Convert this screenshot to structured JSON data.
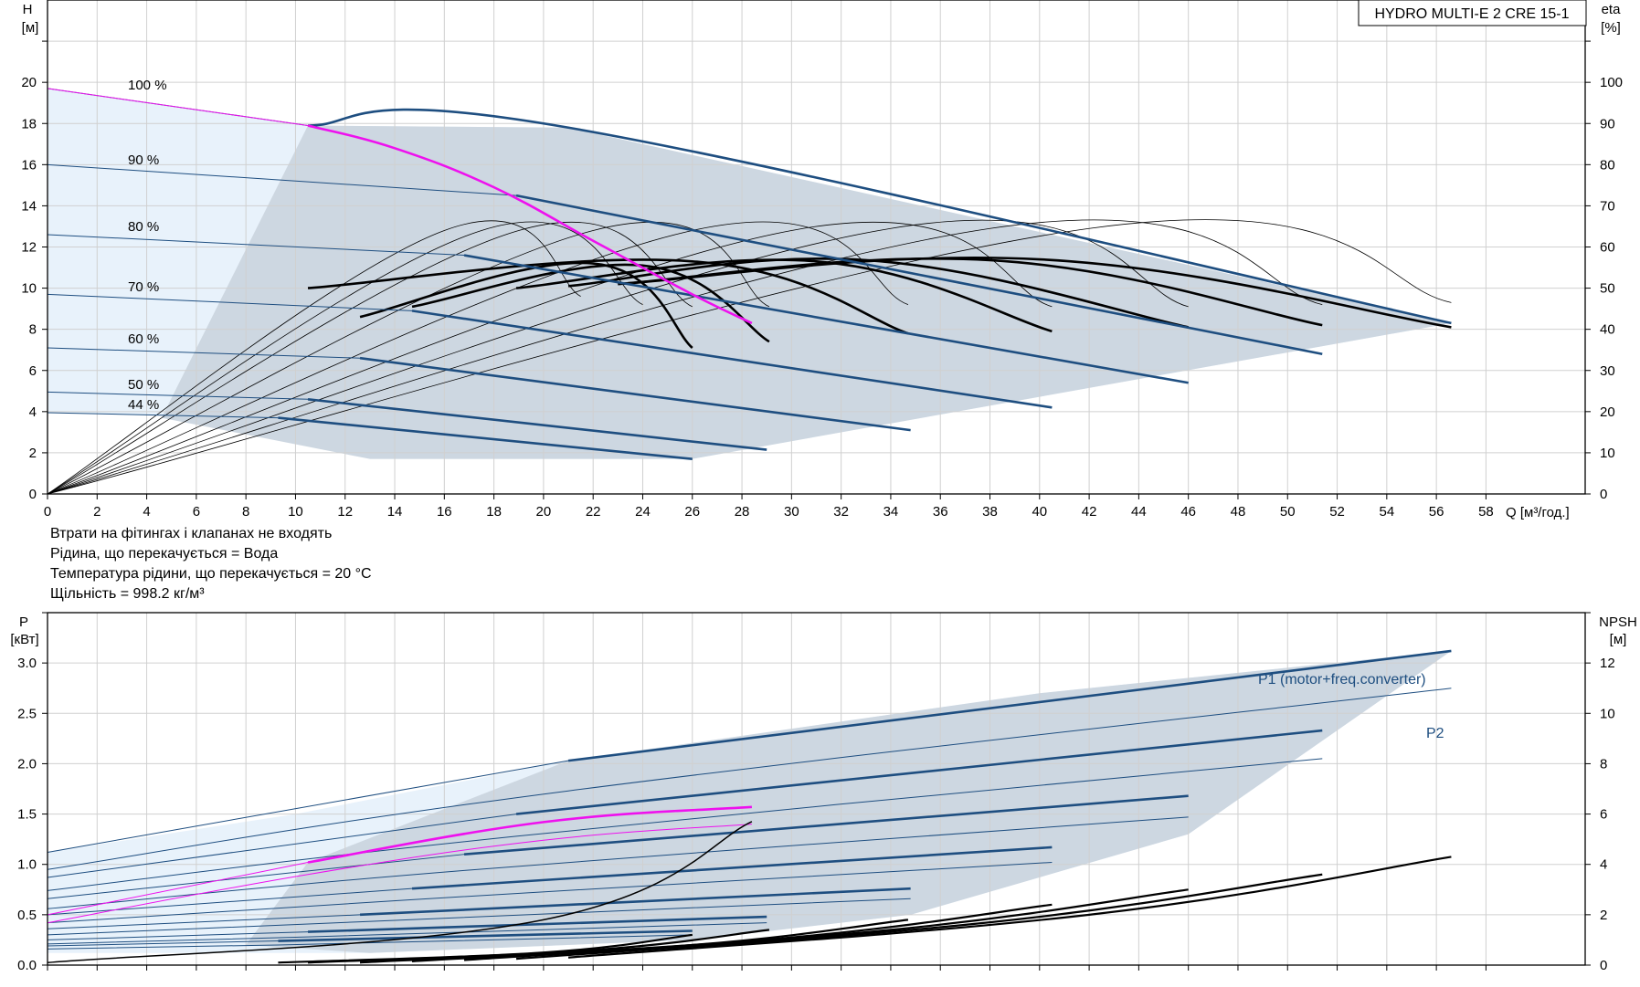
{
  "notes": [
    "Втрати на фітингах і клапанах не входять",
    "Рідина, що перекачується = Вода",
    "Температура рідини, що перекачується = 20 °C",
    "Щільність = 998.2 кг/м³"
  ],
  "colors": {
    "band": "#cdd7e1",
    "band_light": "#e8f2fb",
    "curve": "#1e4e80",
    "duty": "#ee11ee",
    "black": "#000000"
  },
  "chart_data": [
    {
      "type": "line",
      "title": "HYDRO MULTI-E 2 CRE 15-1",
      "xlabel": "Q [м³/год.]",
      "ylabel_top": "H",
      "ylabel_unit": "[м]",
      "y2label_top": "eta",
      "y2label_unit": "[%]",
      "xlim": [
        0,
        62
      ],
      "ylim": [
        0,
        24
      ],
      "y2lim": [
        0,
        120
      ],
      "xticks": [
        0,
        2,
        4,
        6,
        8,
        10,
        12,
        14,
        16,
        18,
        20,
        22,
        24,
        26,
        28,
        30,
        32,
        34,
        36,
        38,
        40,
        42,
        44,
        46,
        48,
        50,
        52,
        54,
        56,
        58
      ],
      "yticks": [
        0,
        2,
        4,
        6,
        8,
        10,
        12,
        14,
        16,
        18,
        20
      ],
      "y2ticks": [
        0,
        10,
        20,
        30,
        40,
        50,
        60,
        70,
        80,
        90,
        100
      ],
      "grid": true,
      "speed_labels": [
        "100 %",
        "90 %",
        "80 %",
        "70 %",
        "60 %",
        "50 %",
        "44 %"
      ],
      "head_curves": [
        {
          "speed": "100 %",
          "x": [
            0,
            10.5,
            21,
            56.6
          ],
          "y": [
            19.7,
            17.9,
            17.8,
            8.3
          ]
        },
        {
          "speed": "90 %",
          "x": [
            0,
            18.9,
            51.4
          ],
          "y": [
            16.0,
            14.5,
            6.8
          ]
        },
        {
          "speed": "80 %",
          "x": [
            0,
            16.8,
            46.0
          ],
          "y": [
            12.6,
            11.6,
            5.4
          ]
        },
        {
          "speed": "70 %",
          "x": [
            0,
            14.7,
            40.5
          ],
          "y": [
            9.7,
            8.9,
            4.2
          ]
        },
        {
          "speed": "60 %",
          "x": [
            0,
            12.6,
            34.8
          ],
          "y": [
            7.1,
            6.6,
            3.1
          ]
        },
        {
          "speed": "50 %",
          "x": [
            0,
            10.5,
            29.0
          ],
          "y": [
            4.95,
            4.6,
            2.15
          ]
        },
        {
          "speed": "44 %",
          "x": [
            0,
            9.3,
            26.0
          ],
          "y": [
            3.95,
            3.7,
            1.7
          ]
        }
      ],
      "duty_curve": {
        "x": [
          10.5,
          14,
          18,
          22,
          26,
          28.4
        ],
        "y": [
          17.9,
          16.8,
          14.9,
          12.3,
          9.7,
          8.3
        ]
      },
      "efficiency_curves_bold": [
        {
          "x": [
            12.6,
            22,
            26
          ],
          "y": [
            43,
            56,
            35.5
          ]
        },
        {
          "x": [
            14.7,
            24,
            29.1
          ],
          "y": [
            45.5,
            55.5,
            37
          ]
        },
        {
          "x": [
            10.5,
            26,
            34.7
          ],
          "y": [
            50,
            56.5,
            39
          ]
        },
        {
          "x": [
            18.9,
            31,
            40.5
          ],
          "y": [
            50,
            56.5,
            39.5
          ]
        },
        {
          "x": [
            21,
            33,
            46
          ],
          "y": [
            50.5,
            56.8,
            40.5
          ]
        },
        {
          "x": [
            23,
            38,
            51.4
          ],
          "y": [
            51,
            56.8,
            41
          ]
        },
        {
          "x": [
            23,
            40,
            56.6
          ],
          "y": [
            51,
            57,
            40.5
          ]
        }
      ],
      "efficiency_curves_thin": [
        {
          "x": [
            0,
            16,
            21.5
          ],
          "y": [
            0,
            64,
            48
          ]
        },
        {
          "x": [
            0,
            17.5,
            24
          ],
          "y": [
            0,
            64,
            46
          ]
        },
        {
          "x": [
            0,
            19,
            26
          ],
          "y": [
            0,
            64,
            45.5
          ]
        },
        {
          "x": [
            0,
            22,
            29.1
          ],
          "y": [
            0,
            64,
            45.5
          ]
        },
        {
          "x": [
            0,
            26,
            34.7
          ],
          "y": [
            0,
            64,
            46
          ]
        },
        {
          "x": [
            0,
            30,
            40.5
          ],
          "y": [
            0,
            64,
            45.5
          ]
        },
        {
          "x": [
            0,
            34,
            46
          ],
          "y": [
            0,
            64.5,
            45.5
          ]
        },
        {
          "x": [
            0,
            38,
            51.4
          ],
          "y": [
            0,
            64.5,
            46
          ]
        },
        {
          "x": [
            0,
            42,
            56.6
          ],
          "y": [
            0,
            64.5,
            46.5
          ]
        }
      ]
    },
    {
      "type": "line",
      "ylabel_top": "P",
      "ylabel_unit": "[кВт]",
      "y2label_top": "NPSH",
      "y2label_unit": "[м]",
      "xlim": [
        0,
        62
      ],
      "ylim": [
        0,
        3.5
      ],
      "y2lim": [
        0,
        14
      ],
      "yticks": [
        0.0,
        0.5,
        1.0,
        1.5,
        2.0,
        2.5,
        3.0
      ],
      "ytick_labels": [
        "0.0",
        "0.5",
        "1.0",
        "1.5",
        "2.0",
        "2.5",
        "3.0"
      ],
      "y2ticks": [
        0,
        2,
        4,
        6,
        8,
        10,
        12
      ],
      "grid": true,
      "series_labels": [
        "P1 (motor+freq.converter)",
        "P2"
      ],
      "p1_curves": [
        {
          "x": [
            0,
            21,
            56.6
          ],
          "y": [
            1.12,
            2.03,
            3.12
          ]
        },
        {
          "x": [
            0,
            18.9,
            51.4
          ],
          "y": [
            0.87,
            1.5,
            2.33
          ]
        },
        {
          "x": [
            0,
            16.8,
            46.0
          ],
          "y": [
            0.66,
            1.1,
            1.68
          ]
        },
        {
          "x": [
            0,
            14.7,
            40.5
          ],
          "y": [
            0.5,
            0.76,
            1.17
          ]
        },
        {
          "x": [
            0,
            12.6,
            34.8
          ],
          "y": [
            0.36,
            0.5,
            0.76
          ]
        },
        {
          "x": [
            0,
            10.5,
            29.0
          ],
          "y": [
            0.25,
            0.33,
            0.48
          ]
        },
        {
          "x": [
            0,
            9.3,
            26.0
          ],
          "y": [
            0.19,
            0.24,
            0.34
          ]
        }
      ],
      "p2_curves": [
        {
          "x": [
            0,
            21,
            56.6
          ],
          "y": [
            0.95,
            1.73,
            2.75
          ]
        },
        {
          "x": [
            0,
            18.9,
            51.4
          ],
          "y": [
            0.74,
            1.28,
            2.05
          ]
        },
        {
          "x": [
            0,
            16.8,
            46.0
          ],
          "y": [
            0.56,
            0.94,
            1.47
          ]
        },
        {
          "x": [
            0,
            14.7,
            40.5
          ],
          "y": [
            0.42,
            0.65,
            1.02
          ]
        },
        {
          "x": [
            0,
            12.6,
            34.8
          ],
          "y": [
            0.3,
            0.43,
            0.66
          ]
        },
        {
          "x": [
            0,
            10.5,
            29.0
          ],
          "y": [
            0.21,
            0.28,
            0.42
          ]
        },
        {
          "x": [
            0,
            9.3,
            26.0
          ],
          "y": [
            0.16,
            0.2,
            0.3
          ]
        }
      ],
      "duty_p1": {
        "x": [
          0,
          10.5,
          20,
          28.4
        ],
        "y": [
          0.5,
          1.02,
          1.42,
          1.57
        ]
      },
      "duty_p2": {
        "x": [
          0,
          10.5,
          20,
          28.4
        ],
        "y": [
          0.42,
          0.9,
          1.24,
          1.4
        ]
      },
      "npsh_curves": [
        {
          "x": [
            9.3,
            20,
            26.0
          ],
          "y": [
            0.1,
            0.5,
            1.2
          ]
        },
        {
          "x": [
            10.5,
            22,
            29.1
          ],
          "y": [
            0.1,
            0.6,
            1.4
          ]
        },
        {
          "x": [
            12.6,
            26,
            34.7
          ],
          "y": [
            0.1,
            0.8,
            1.8
          ]
        },
        {
          "x": [
            14.7,
            30,
            40.5
          ],
          "y": [
            0.15,
            1.1,
            2.4
          ]
        },
        {
          "x": [
            16.8,
            34,
            46.0
          ],
          "y": [
            0.2,
            1.4,
            3.0
          ]
        },
        {
          "x": [
            18.9,
            38,
            51.4
          ],
          "y": [
            0.25,
            1.7,
            3.6
          ]
        },
        {
          "x": [
            21,
            42,
            56.6
          ],
          "y": [
            0.3,
            2.0,
            4.3
          ]
        },
        {
          "x": [
            0,
            20,
            28.4
          ],
          "y": [
            0.1,
            1.8,
            5.7
          ]
        }
      ]
    }
  ]
}
